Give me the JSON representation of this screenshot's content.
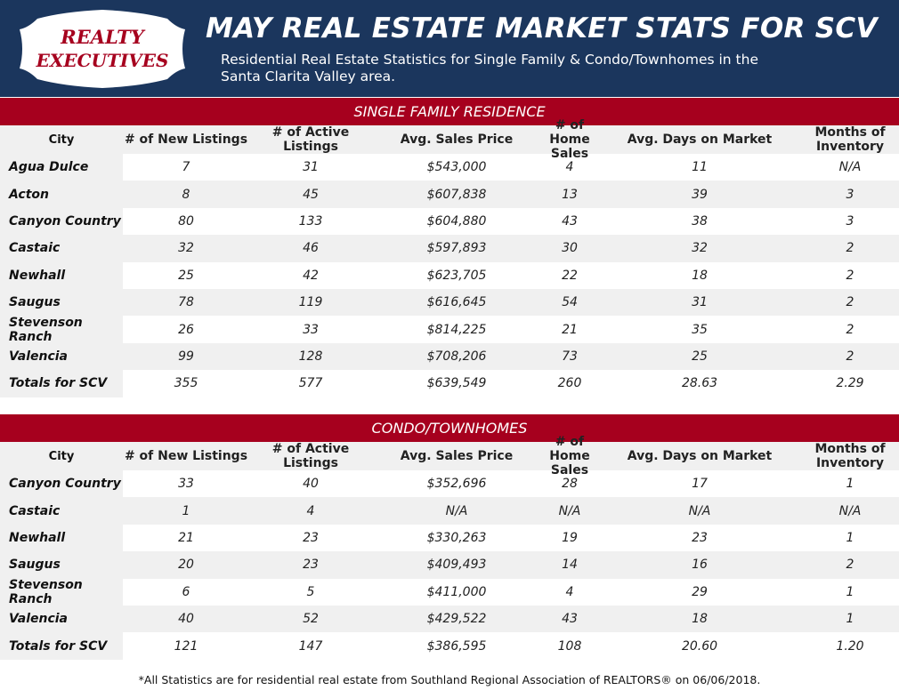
{
  "header": {
    "logo_text": [
      "REALTY",
      "EXECUTIVES"
    ],
    "title": "MAY REAL ESTATE MARKET STATS FOR SCV",
    "subtitle": "Residential Real Estate Statistics for Single Family & Condo/Townhomes in the Santa Clarita Valley area."
  },
  "colors": {
    "navy": "#1b365d",
    "red": "#a6001e",
    "gray": "#f0f0f0"
  },
  "columns": [
    "City",
    "# of New Listings",
    "# of Active Listings",
    "Avg. Sales Price",
    "# of Home Sales",
    "Avg. Days on Market",
    "Months of Inventory"
  ],
  "single_family": {
    "title": "SINGLE FAMILY RESIDENCE",
    "rows": [
      [
        "Agua Dulce",
        "7",
        "31",
        "$543,000",
        "4",
        "11",
        "N/A"
      ],
      [
        "Acton",
        "8",
        "45",
        "$607,838",
        "13",
        "39",
        "3"
      ],
      [
        "Canyon Country",
        "80",
        "133",
        "$604,880",
        "43",
        "38",
        "3"
      ],
      [
        "Castaic",
        "32",
        "46",
        "$597,893",
        "30",
        "32",
        "2"
      ],
      [
        "Newhall",
        "25",
        "42",
        "$623,705",
        "22",
        "18",
        "2"
      ],
      [
        "Saugus",
        "78",
        "119",
        "$616,645",
        "54",
        "31",
        "2"
      ],
      [
        "Stevenson Ranch",
        "26",
        "33",
        "$814,225",
        "21",
        "35",
        "2"
      ],
      [
        "Valencia",
        "99",
        "128",
        "$708,206",
        "73",
        "25",
        "2"
      ],
      [
        "Totals for SCV",
        "355",
        "577",
        "$639,549",
        "260",
        "28.63",
        "2.29"
      ]
    ]
  },
  "condo": {
    "title": "CONDO/TOWNHOMES",
    "rows": [
      [
        "Canyon Country",
        "33",
        "40",
        "$352,696",
        "28",
        "17",
        "1"
      ],
      [
        "Castaic",
        "1",
        "4",
        "N/A",
        "N/A",
        "N/A",
        "N/A"
      ],
      [
        "Newhall",
        "21",
        "23",
        "$330,263",
        "19",
        "23",
        "1"
      ],
      [
        "Saugus",
        "20",
        "23",
        "$409,493",
        "14",
        "16",
        "2"
      ],
      [
        "Stevenson Ranch",
        "6",
        "5",
        "$411,000",
        "4",
        "29",
        "1"
      ],
      [
        "Valencia",
        "40",
        "52",
        "$429,522",
        "43",
        "18",
        "1"
      ],
      [
        "Totals for SCV",
        "121",
        "147",
        "$386,595",
        "108",
        "20.60",
        "1.20"
      ]
    ]
  },
  "footnote": "*All Statistics are for residential real estate from Southland Regional Association of REALTORS® on 06/06/2018."
}
